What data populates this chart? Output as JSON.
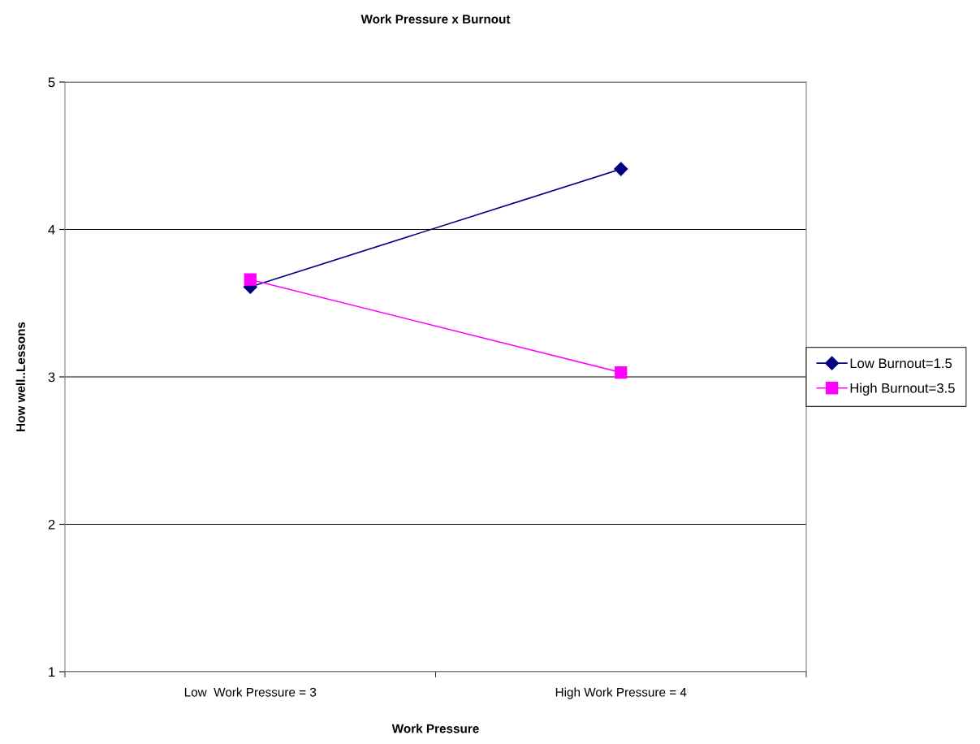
{
  "chart_data": {
    "type": "line",
    "title": "Work Pressure x Burnout",
    "xlabel": "Work Pressure",
    "ylabel": "How well..Lessons",
    "categories": [
      "Low  Work Pressure = 3",
      "High Work Pressure = 4"
    ],
    "series": [
      {
        "name": "Low Burnout=1.5",
        "color": "#000080",
        "values": [
          3.61,
          4.41
        ],
        "marker": "diamond"
      },
      {
        "name": "High Burnout=3.5",
        "color": "#ff00ff",
        "values": [
          3.66,
          3.03
        ],
        "marker": "square"
      }
    ],
    "ylim": [
      1,
      5
    ],
    "yticks": [
      1,
      2,
      3,
      4,
      5
    ],
    "grid": "y",
    "legend": "right",
    "line_style": "solid"
  }
}
